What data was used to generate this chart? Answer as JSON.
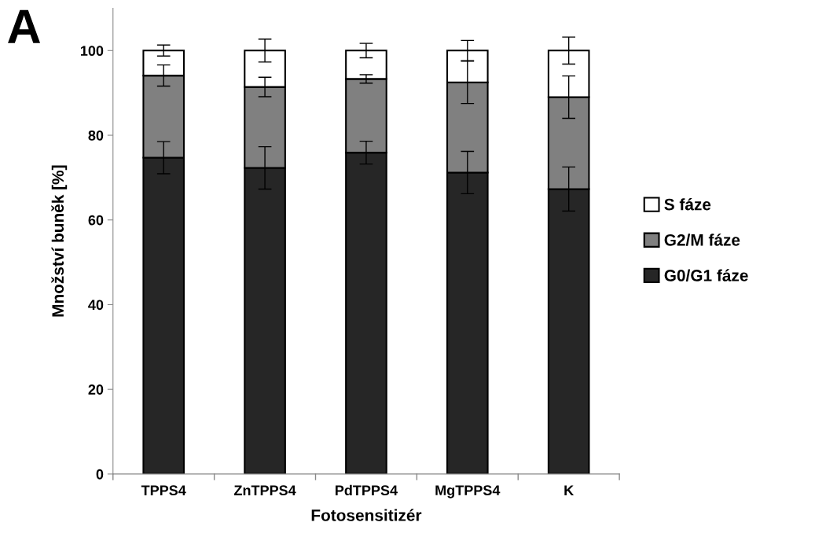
{
  "chart_data": {
    "type": "bar",
    "stacked": true,
    "xlabel": "Fotosensitizér",
    "ylabel": "Množství buněk [%]",
    "annotations": [
      "A"
    ],
    "categories": [
      "TPPS4",
      "ZnTPPS4",
      "PdTPPS4",
      "MgTPPS4",
      "K"
    ],
    "series": [
      {
        "name": "G0/G1 fáze",
        "color": "#262626",
        "values": [
          74.7,
          72.3,
          75.9,
          71.2,
          67.3
        ],
        "errors": [
          3.8,
          5.0,
          2.7,
          5.0,
          5.2
        ]
      },
      {
        "name": "G2/M fáze",
        "color": "#808080",
        "values": [
          19.4,
          19.1,
          17.4,
          21.3,
          21.7
        ],
        "errors": [
          2.5,
          2.3,
          1.0,
          5.0,
          5.0
        ]
      },
      {
        "name": "S fáze",
        "color": "#ffffff",
        "values": [
          5.9,
          8.6,
          6.7,
          7.5,
          11.0
        ],
        "errors": [
          1.3,
          2.7,
          1.7,
          2.4,
          3.2
        ]
      }
    ],
    "ylim": [
      0,
      110
    ],
    "yticks": [
      0,
      20,
      40,
      60,
      80,
      100
    ],
    "grid": false,
    "legend": "right"
  }
}
